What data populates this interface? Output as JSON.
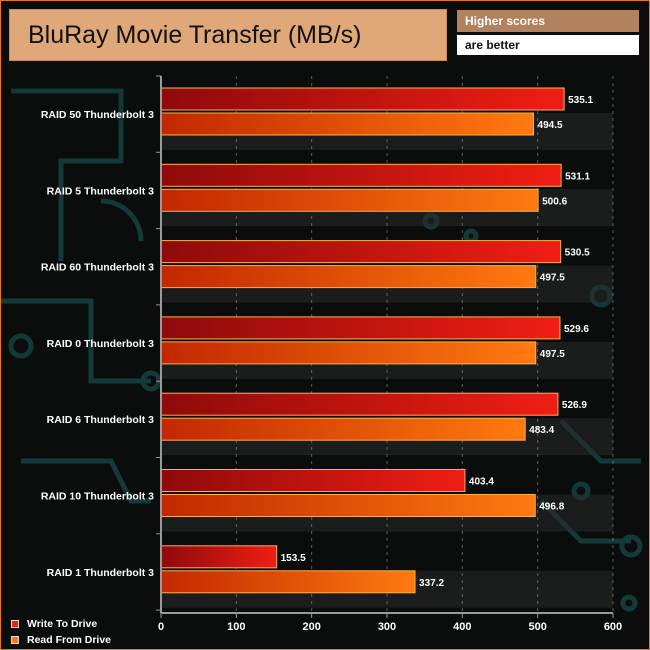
{
  "header": {
    "title": "BluRay Movie Transfer (MB/s)",
    "note_line1": "Higher scores",
    "note_line2": "are better"
  },
  "colors": {
    "write_dark": "#8e0a0a",
    "write_light": "#f01e14",
    "read_dark": "#c22800",
    "read_light": "#ff7a0f",
    "bar_border": "#ffb04a",
    "axis": "#9a9a9a",
    "band": "#2a2a2a"
  },
  "chart_data": {
    "type": "bar",
    "orientation": "horizontal",
    "title": "BluRay Movie Transfer (MB/s)",
    "categories": [
      "RAID 50 Thunderbolt 3",
      "RAID 5 Thunderbolt 3",
      "RAID 60 Thunderbolt 3",
      "RAID 0 Thunderbolt 3",
      "RAID 6 Thunderbolt 3",
      "RAID 10 Thunderbolt 3",
      "RAID 1 Thunderbolt 3"
    ],
    "series": [
      {
        "name": "Write To Drive",
        "values": [
          535.1,
          531.1,
          530.5,
          529.6,
          526.9,
          403.4,
          153.5
        ]
      },
      {
        "name": "Read From Drive",
        "values": [
          494.5,
          500.6,
          497.5,
          497.5,
          483.4,
          496.8,
          337.2
        ]
      }
    ],
    "xlim": [
      0,
      600
    ],
    "xticks": [
      0,
      100,
      200,
      300,
      400,
      500,
      600
    ],
    "legend_position": "bottom-left",
    "xlabel": "",
    "ylabel": ""
  }
}
